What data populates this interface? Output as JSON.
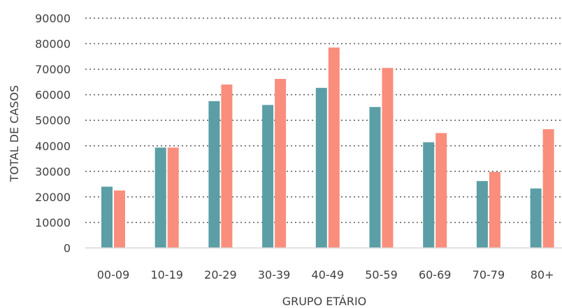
{
  "chart_data": {
    "type": "bar",
    "xlabel": "GRUPO ETÁRIO",
    "ylabel": "TOTAL DE CASOS",
    "categories": [
      "00-09",
      "10-19",
      "20-29",
      "30-39",
      "40-49",
      "50-59",
      "60-69",
      "70-79",
      "80+"
    ],
    "series": [
      {
        "color": "#5b9ea6",
        "values": [
          24000,
          39300,
          57500,
          56000,
          62700,
          55200,
          41400,
          26200,
          23300
        ]
      },
      {
        "color": "#f98e7c",
        "values": [
          22500,
          39300,
          64000,
          66200,
          78500,
          70500,
          45000,
          29800,
          46500
        ]
      }
    ],
    "ylim": [
      0,
      90000
    ],
    "yticks": [
      0,
      10000,
      20000,
      30000,
      40000,
      50000,
      60000,
      70000,
      80000,
      90000
    ],
    "grid": "horizontal-dotted",
    "legend": "none"
  }
}
